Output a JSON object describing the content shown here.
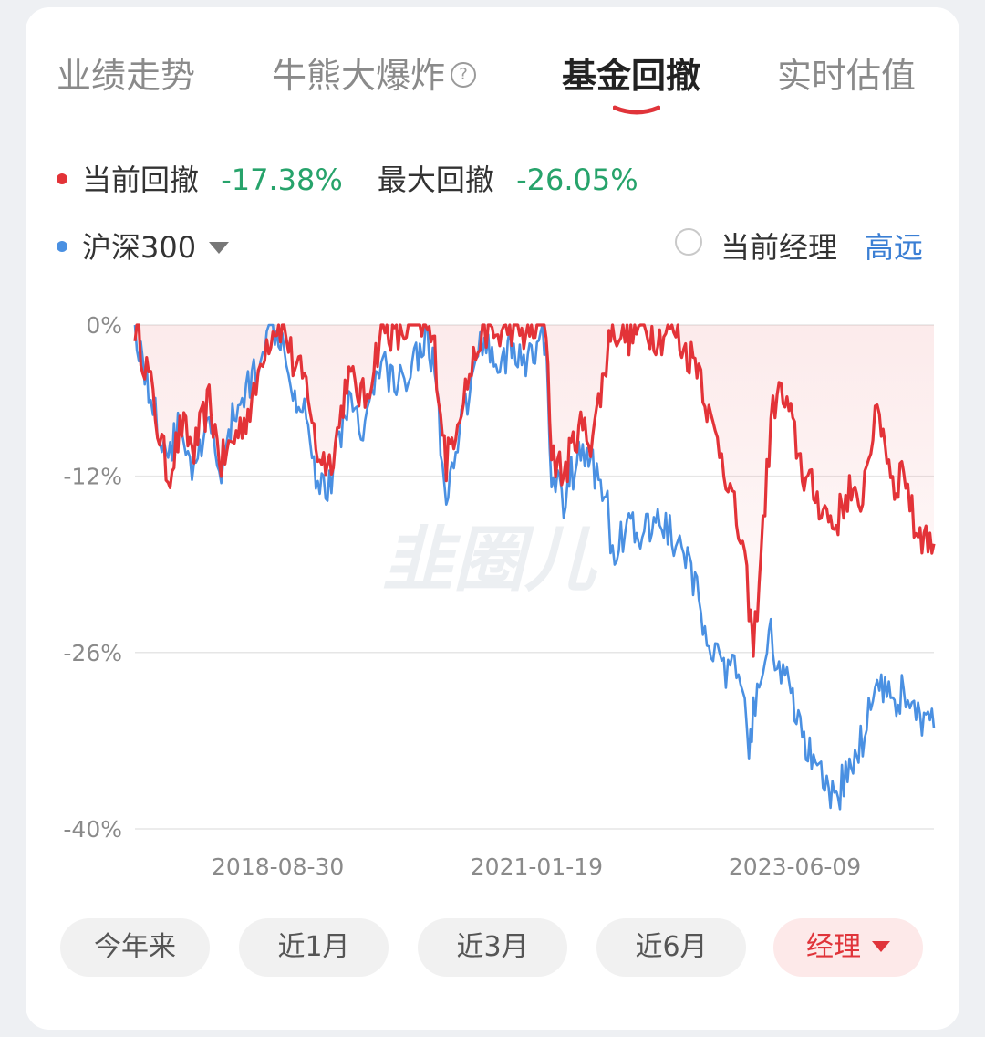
{
  "tabs": [
    {
      "label": "业绩走势",
      "active": false
    },
    {
      "label": "牛熊大爆炸",
      "active": false,
      "help_icon": "?"
    },
    {
      "label": "基金回撤",
      "active": true
    },
    {
      "label": "实时估值",
      "active": false
    }
  ],
  "colors": {
    "fund": "#e33338",
    "index": "#4a90e2",
    "accent": "#e0343a",
    "drawdown_value": "#27a36b",
    "manager_name": "#3b7fd4"
  },
  "legend": {
    "current_label": "当前回撤",
    "current_value": "-17.38%",
    "max_label": "最大回撤",
    "max_value": "-26.05%",
    "benchmark": "沪深300",
    "manager_toggle_label": "当前经理",
    "manager_name": "高远"
  },
  "chart_data": {
    "type": "line",
    "ylim": [
      -40,
      0
    ],
    "ytick_labels": [
      "0%",
      "-12%",
      "-26%",
      "-40%"
    ],
    "ytick_values": [
      0,
      -12,
      -26,
      -40
    ],
    "xtick_labels": [
      "2018-08-30",
      "2021-01-19",
      "2023-06-09"
    ],
    "x_range": [
      "2017-05-05",
      "2024-09-20"
    ],
    "grid": true,
    "watermark": "韭圈儿",
    "series": [
      {
        "name": "当前回撤",
        "color": "#e33338",
        "points": [
          [
            "2017-05-05",
            0
          ],
          [
            "2017-06-20",
            -4
          ],
          [
            "2017-07-20",
            -8
          ],
          [
            "2017-08-25",
            -12
          ],
          [
            "2017-10-10",
            -8
          ],
          [
            "2017-11-20",
            -10
          ],
          [
            "2018-01-10",
            -6
          ],
          [
            "2018-02-20",
            -11
          ],
          [
            "2018-04-05",
            -9
          ],
          [
            "2018-06-10",
            -6
          ],
          [
            "2018-07-10",
            -2
          ],
          [
            "2018-08-20",
            0
          ],
          [
            "2018-09-20",
            0
          ],
          [
            "2018-10-20",
            -3
          ],
          [
            "2018-12-10",
            -5
          ],
          [
            "2019-01-05",
            -10
          ],
          [
            "2019-02-20",
            -11
          ],
          [
            "2019-03-25",
            -8
          ],
          [
            "2019-04-20",
            -4
          ],
          [
            "2019-06-20",
            -6
          ],
          [
            "2019-07-20",
            -3
          ],
          [
            "2019-08-20",
            0
          ],
          [
            "2019-10-10",
            -1
          ],
          [
            "2019-11-20",
            0
          ],
          [
            "2020-01-10",
            0
          ],
          [
            "2020-02-10",
            -2
          ],
          [
            "2020-03-20",
            -11
          ],
          [
            "2020-05-10",
            -6
          ],
          [
            "2020-06-20",
            -3
          ],
          [
            "2020-07-20",
            0
          ],
          [
            "2020-09-10",
            -1
          ],
          [
            "2020-10-20",
            0
          ],
          [
            "2020-12-20",
            -1
          ],
          [
            "2021-01-20",
            0
          ],
          [
            "2021-02-20",
            0
          ],
          [
            "2021-03-10",
            -10
          ],
          [
            "2021-04-20",
            -12
          ],
          [
            "2021-06-10",
            -8
          ],
          [
            "2021-07-20",
            -9
          ],
          [
            "2021-08-10",
            -7
          ],
          [
            "2021-09-10",
            -3
          ],
          [
            "2021-09-25",
            0
          ],
          [
            "2021-11-20",
            -1
          ],
          [
            "2022-01-10",
            0
          ],
          [
            "2022-03-10",
            -1
          ],
          [
            "2022-04-20",
            0
          ],
          [
            "2022-05-30",
            -2
          ],
          [
            "2022-07-20",
            -3
          ],
          [
            "2022-08-30",
            -8
          ],
          [
            "2022-10-05",
            -10
          ],
          [
            "2022-11-10",
            -14
          ],
          [
            "2022-12-15",
            -18
          ],
          [
            "2023-01-05",
            -22
          ],
          [
            "2023-01-20",
            -26
          ],
          [
            "2023-02-15",
            -18
          ],
          [
            "2023-03-20",
            -8
          ],
          [
            "2023-04-10",
            -5
          ],
          [
            "2023-05-20",
            -7
          ],
          [
            "2023-07-10",
            -12
          ],
          [
            "2023-08-30",
            -14
          ],
          [
            "2023-10-20",
            -16
          ],
          [
            "2023-12-10",
            -13
          ],
          [
            "2024-01-10",
            -15
          ],
          [
            "2024-02-20",
            -9
          ],
          [
            "2024-03-20",
            -7
          ],
          [
            "2024-05-10",
            -13
          ],
          [
            "2024-06-10",
            -11
          ],
          [
            "2024-07-15",
            -16
          ],
          [
            "2024-09-20",
            -17.38
          ]
        ]
      },
      {
        "name": "沪深300",
        "color": "#4a90e2",
        "points": [
          [
            "2017-05-05",
            0
          ],
          [
            "2017-06-20",
            -5
          ],
          [
            "2017-07-20",
            -8
          ],
          [
            "2017-08-25",
            -10
          ],
          [
            "2017-10-10",
            -8
          ],
          [
            "2017-11-20",
            -12
          ],
          [
            "2018-01-10",
            -8
          ],
          [
            "2018-02-20",
            -12
          ],
          [
            "2018-04-05",
            -7
          ],
          [
            "2018-06-10",
            -4
          ],
          [
            "2018-07-10",
            -1
          ],
          [
            "2018-08-20",
            0
          ],
          [
            "2018-09-20",
            -1
          ],
          [
            "2018-10-20",
            -5
          ],
          [
            "2018-12-10",
            -7
          ],
          [
            "2019-01-05",
            -12
          ],
          [
            "2019-02-20",
            -13
          ],
          [
            "2019-03-25",
            -9
          ],
          [
            "2019-04-20",
            -6
          ],
          [
            "2019-06-20",
            -8
          ],
          [
            "2019-07-20",
            -5
          ],
          [
            "2019-08-20",
            -3
          ],
          [
            "2019-10-10",
            -5
          ],
          [
            "2019-11-20",
            -3
          ],
          [
            "2020-01-10",
            -1
          ],
          [
            "2020-02-10",
            -3
          ],
          [
            "2020-03-20",
            -15
          ],
          [
            "2020-05-10",
            -8
          ],
          [
            "2020-06-20",
            -4
          ],
          [
            "2020-07-20",
            -1
          ],
          [
            "2020-09-10",
            -3
          ],
          [
            "2020-10-20",
            -2
          ],
          [
            "2020-12-20",
            -3
          ],
          [
            "2021-01-20",
            -2
          ],
          [
            "2021-02-20",
            -1
          ],
          [
            "2021-03-10",
            -12
          ],
          [
            "2021-04-20",
            -14
          ],
          [
            "2021-06-10",
            -10
          ],
          [
            "2021-07-20",
            -11
          ],
          [
            "2021-08-10",
            -12
          ],
          [
            "2021-09-10",
            -13
          ],
          [
            "2021-09-25",
            -18
          ],
          [
            "2021-11-20",
            -16
          ],
          [
            "2022-01-10",
            -17
          ],
          [
            "2022-03-10",
            -15
          ],
          [
            "2022-04-20",
            -17
          ],
          [
            "2022-05-30",
            -18
          ],
          [
            "2022-07-20",
            -22
          ],
          [
            "2022-08-30",
            -25
          ],
          [
            "2022-10-05",
            -28
          ],
          [
            "2022-11-10",
            -27
          ],
          [
            "2022-12-15",
            -30
          ],
          [
            "2023-01-05",
            -33
          ],
          [
            "2023-01-20",
            -31
          ],
          [
            "2023-02-15",
            -29
          ],
          [
            "2023-03-20",
            -24
          ],
          [
            "2023-04-10",
            -27
          ],
          [
            "2023-05-20",
            -29
          ],
          [
            "2023-07-10",
            -33
          ],
          [
            "2023-08-30",
            -36
          ],
          [
            "2023-10-20",
            -38
          ],
          [
            "2023-12-10",
            -35
          ],
          [
            "2024-01-10",
            -34
          ],
          [
            "2024-02-20",
            -30
          ],
          [
            "2024-03-20",
            -28
          ],
          [
            "2024-05-10",
            -30
          ],
          [
            "2024-06-10",
            -29
          ],
          [
            "2024-07-15",
            -31
          ],
          [
            "2024-09-20",
            -32
          ]
        ]
      }
    ]
  },
  "range_buttons": [
    {
      "label": "今年来",
      "active": false
    },
    {
      "label": "近1月",
      "active": false
    },
    {
      "label": "近3月",
      "active": false
    },
    {
      "label": "近6月",
      "active": false
    },
    {
      "label": "经理",
      "active": true
    }
  ]
}
